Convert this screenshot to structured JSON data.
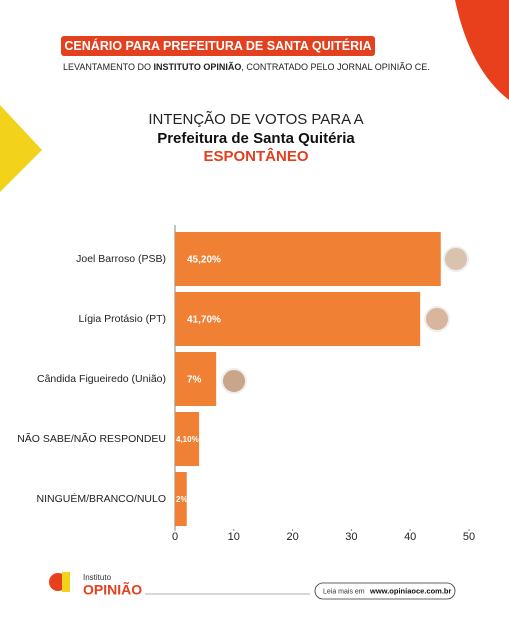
{
  "header": {
    "banner": "CENÁRIO PARA PREFEITURA DE SANTA QUITÉRIA",
    "subtitle_parts": [
      "LEVANTAMENTO DO ",
      "INSTITUTO OPINIÃO",
      ", CONTRATADO PELO JORNAL OPINIÃO CE."
    ]
  },
  "chart_data": {
    "type": "bar",
    "orientation": "horizontal",
    "title": "INTENÇÃO DE VOTOS PARA A",
    "subtitle": "Prefeitura de Santa Quitéria",
    "label": "ESPONTÂNEO",
    "categories": [
      "Joel Barroso (PSB)",
      "Lígia Protásio (PT)",
      "Cândida Figueiredo (União)",
      "NÃO SABE/NÃO RESPONDEU",
      "NINGUÉM/BRANCO/NULO"
    ],
    "values": [
      45.2,
      41.7,
      7,
      4.1,
      2
    ],
    "value_labels": [
      "45,20%",
      "41,70%",
      "7%",
      "4,10%",
      "2%"
    ],
    "color": "#f08033",
    "xlim": [
      0,
      50
    ],
    "xticks": [
      0,
      10,
      20,
      30,
      40,
      50
    ],
    "grid": false
  },
  "footer": {
    "logo_small": "Instituto",
    "logo_big": "OPINIÃO",
    "read_more": "Leia mais em",
    "url": "www.opiniaoce.com.br"
  }
}
